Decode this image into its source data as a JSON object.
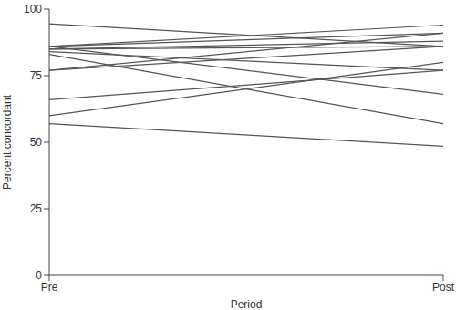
{
  "chart_data": {
    "type": "line",
    "xlabel": "Period",
    "ylabel": "Percent concordant",
    "categories": [
      "Pre",
      "Post"
    ],
    "color": "#555555",
    "ylim": [
      0,
      100
    ],
    "yticks": [
      0,
      25,
      50,
      75,
      100
    ],
    "grid": false,
    "series": [
      {
        "values": [
          94.5,
          86
        ]
      },
      {
        "values": [
          86,
          94
        ]
      },
      {
        "values": [
          86,
          91
        ]
      },
      {
        "values": [
          85,
          88
        ]
      },
      {
        "values": [
          85,
          86
        ]
      },
      {
        "values": [
          84,
          77
        ]
      },
      {
        "values": [
          83,
          57
        ]
      },
      {
        "values": [
          77,
          91
        ]
      },
      {
        "values": [
          77,
          86
        ]
      },
      {
        "values": [
          66,
          77
        ]
      },
      {
        "values": [
          60,
          80
        ]
      },
      {
        "values": [
          86,
          68
        ]
      },
      {
        "values": [
          57,
          48.5
        ]
      }
    ]
  }
}
